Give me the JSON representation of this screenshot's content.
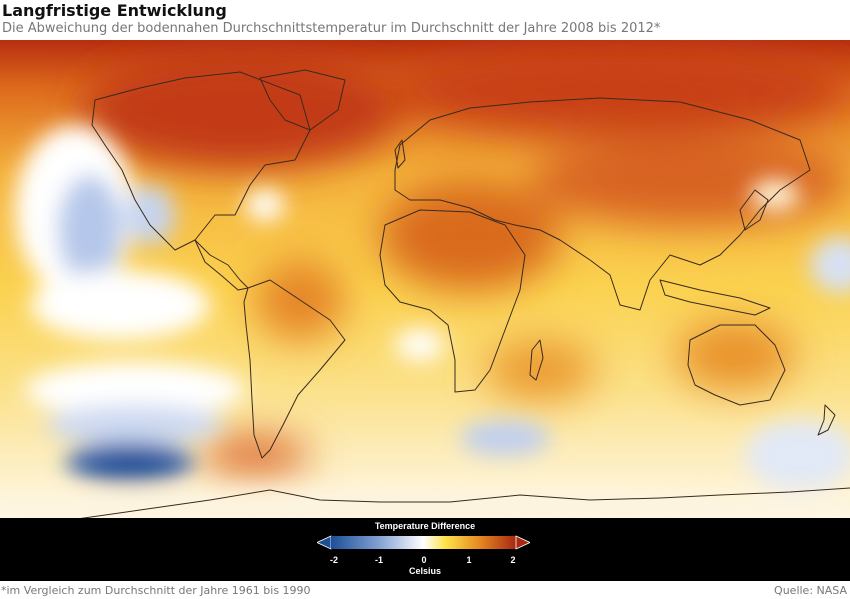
{
  "header": {
    "title": "Langfristige Entwicklung",
    "subtitle": "Die Abweichung der bodennahen Durchschnittstemperatur im Durchschnitt der Jahre 2008 bis 2012*"
  },
  "legend": {
    "title": "Temperature Difference",
    "unit": "Celsius",
    "ticks": [
      "-2",
      "-1",
      "0",
      "1",
      "2"
    ],
    "colors": {
      "min": "#1d4f95",
      "cool": "#7e9ed1",
      "neutral": "#ffffff",
      "warm": "#fde24a",
      "hot": "#e68a22",
      "max": "#a82812"
    }
  },
  "footer": {
    "footnote": "*im Vergleich zum Durchschnitt der Jahre 1961 bis 1990",
    "source": "Quelle: NASA"
  }
}
